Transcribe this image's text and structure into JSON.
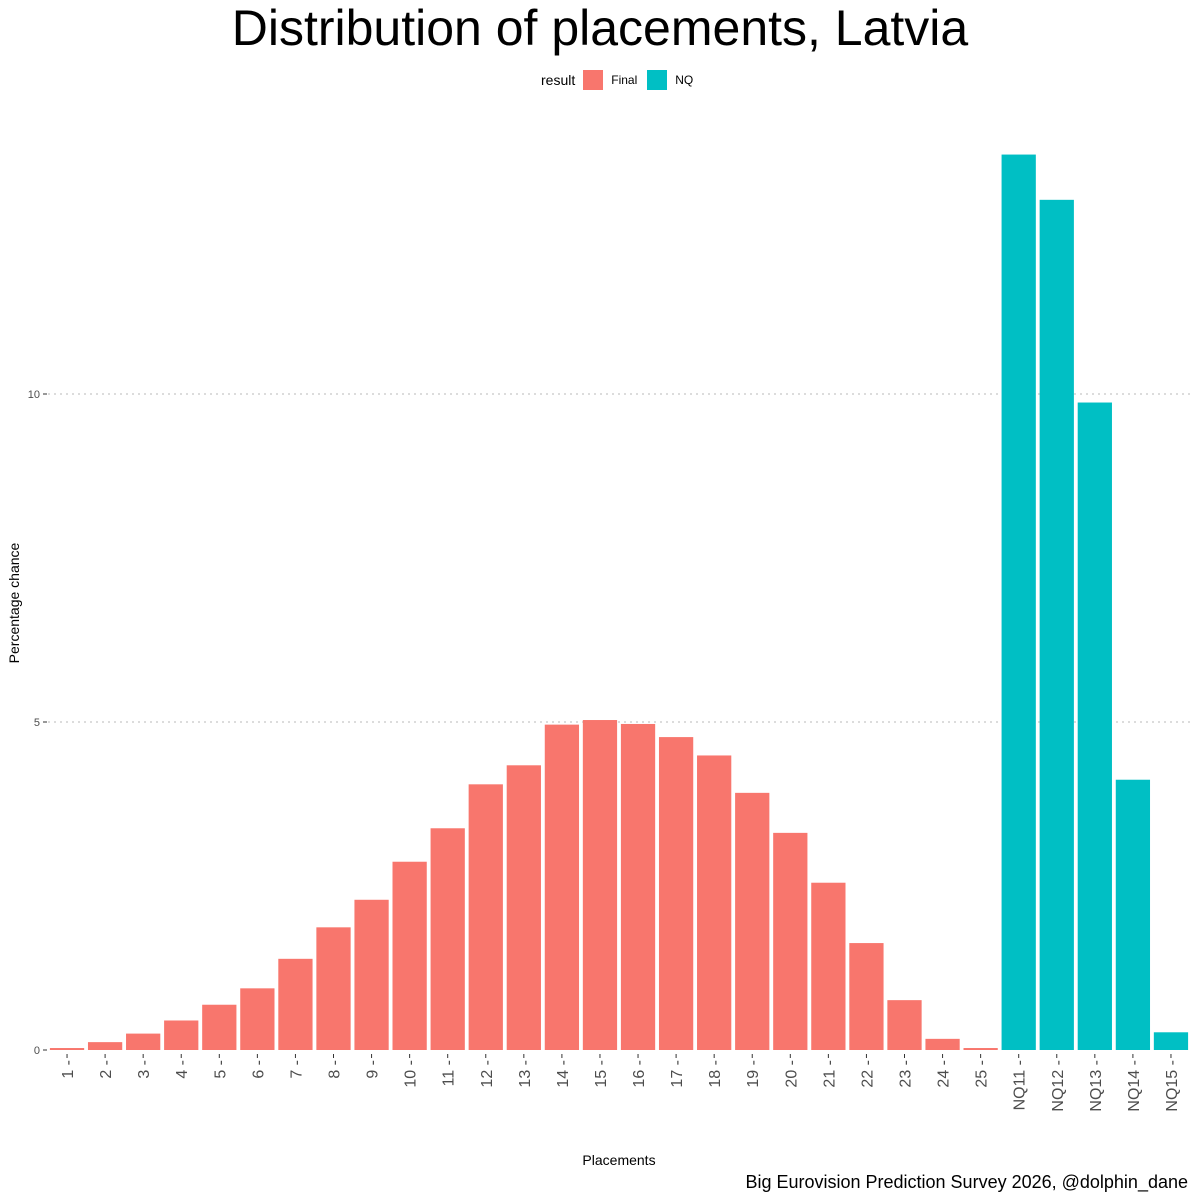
{
  "chart_data": {
    "type": "bar",
    "title": "Distribution of placements, Latvia",
    "xlabel": "Placements",
    "ylabel": "Percentage chance",
    "caption": "Big Eurovision Prediction Survey 2026, @dolphin_dane",
    "legend_title": "result",
    "legend_position": "top",
    "ylim": [
      0,
      14
    ],
    "yticks": [
      0,
      5,
      10
    ],
    "grid": true,
    "colors": {
      "Final": "#F8766D",
      "NQ": "#00BFC4"
    },
    "series": [
      {
        "name": "Final",
        "label": "Final"
      },
      {
        "name": "NQ",
        "label": "NQ"
      }
    ],
    "categories": [
      "1",
      "2",
      "3",
      "4",
      "5",
      "6",
      "7",
      "8",
      "9",
      "10",
      "11",
      "12",
      "13",
      "14",
      "15",
      "16",
      "17",
      "18",
      "19",
      "20",
      "21",
      "22",
      "23",
      "24",
      "25",
      "NQ11",
      "NQ12",
      "NQ13",
      "NQ14",
      "NQ15"
    ],
    "groups": [
      "Final",
      "Final",
      "Final",
      "Final",
      "Final",
      "Final",
      "Final",
      "Final",
      "Final",
      "Final",
      "Final",
      "Final",
      "Final",
      "Final",
      "Final",
      "Final",
      "Final",
      "Final",
      "Final",
      "Final",
      "Final",
      "Final",
      "Final",
      "Final",
      "Final",
      "NQ",
      "NQ",
      "NQ",
      "NQ",
      "NQ"
    ],
    "values": [
      0.03,
      0.12,
      0.25,
      0.45,
      0.69,
      0.94,
      1.39,
      1.87,
      2.29,
      2.87,
      3.38,
      4.05,
      4.34,
      4.96,
      5.03,
      4.97,
      4.77,
      4.49,
      3.92,
      3.31,
      2.55,
      1.63,
      0.76,
      0.17,
      0.03,
      13.65,
      12.96,
      9.87,
      4.12,
      0.27
    ]
  }
}
